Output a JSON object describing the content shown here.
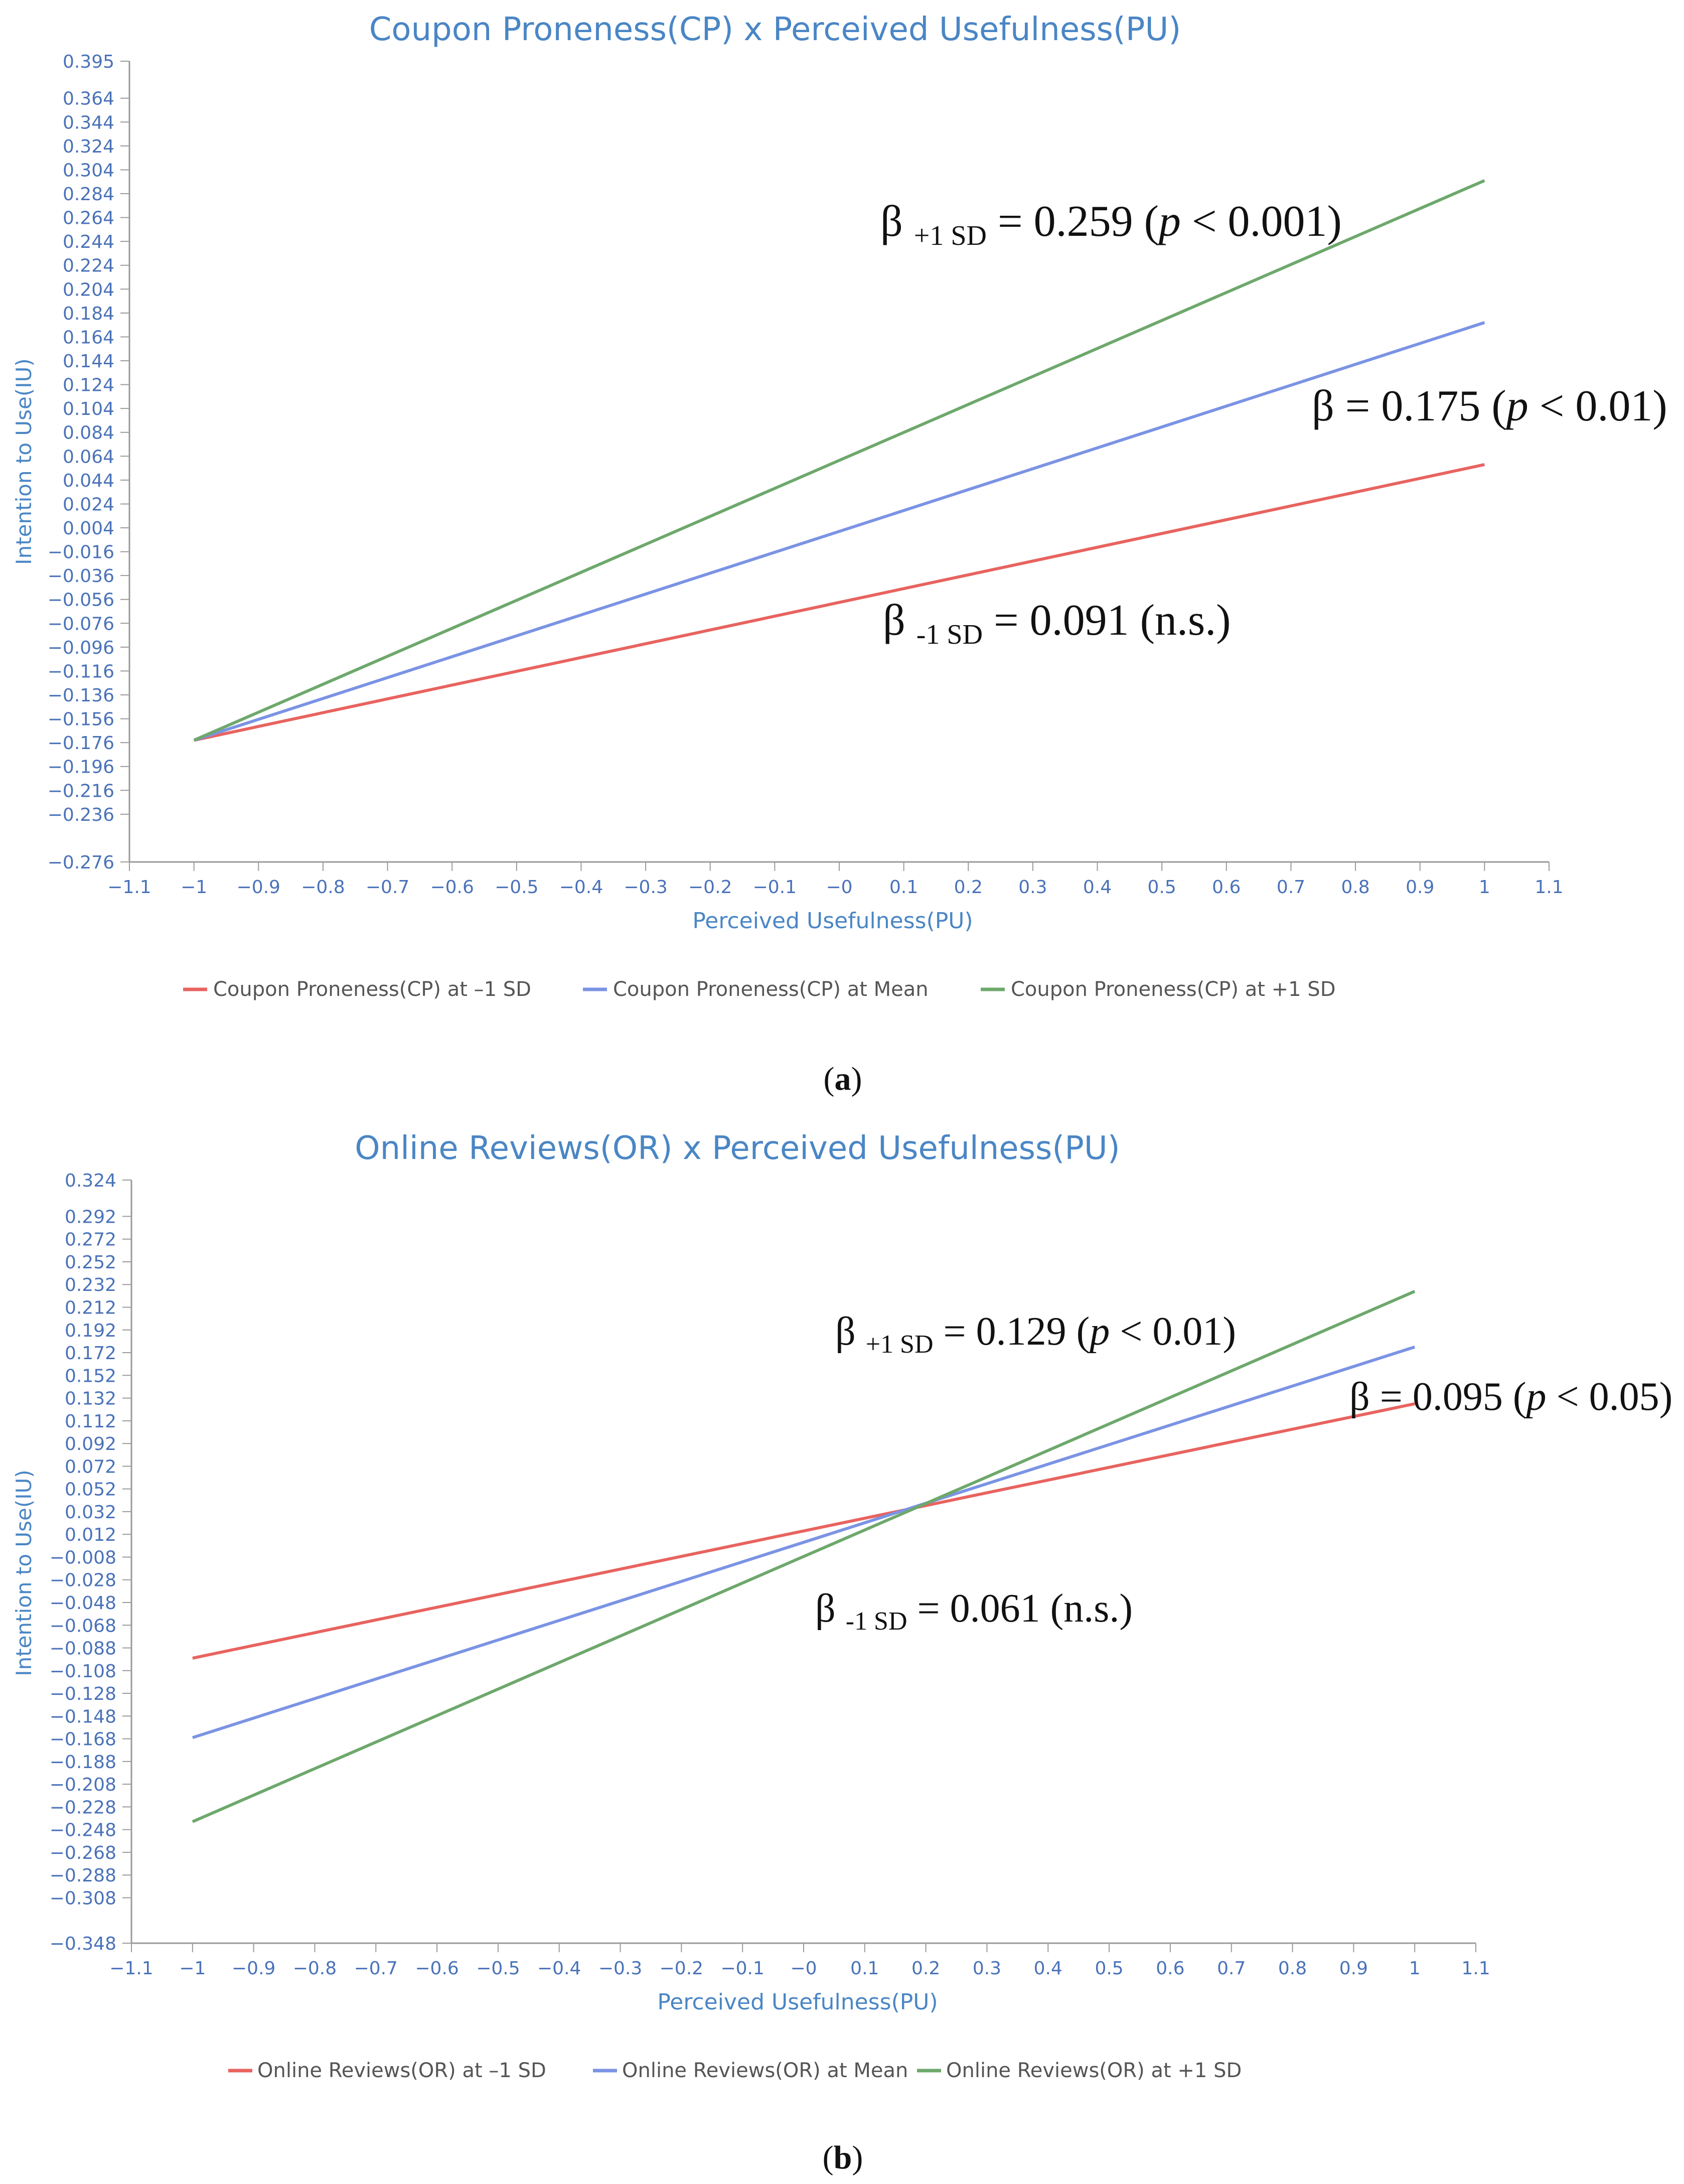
{
  "figure": {
    "caption_a": "a",
    "caption_b": "b"
  },
  "chart_data": [
    {
      "type": "line",
      "title": "Coupon Proneness(CP) x Perceived Usefulness(PU)",
      "xlabel": "Perceived Usefulness(PU)",
      "ylabel": "Intention to Use(IU)",
      "xlim": [
        -1.1,
        1.1
      ],
      "ylim": [
        -0.276,
        0.395
      ],
      "x_ticks": [
        "-1.1",
        "-1",
        "-0.9",
        "-0.8",
        "-0.7",
        "-0.6",
        "-0.5",
        "-0.4",
        "-0.3",
        "-0.2",
        "-0.1",
        "-0",
        "0.1",
        "0.2",
        "0.3",
        "0.4",
        "0.5",
        "0.6",
        "0.7",
        "0.8",
        "0.9",
        "1",
        "1.1"
      ],
      "y_ticks": [
        "0.395",
        "0.364",
        "0.344",
        "0.324",
        "0.304",
        "0.284",
        "0.264",
        "0.244",
        "0.224",
        "0.204",
        "0.184",
        "0.164",
        "0.144",
        "0.124",
        "0.104",
        "0.084",
        "0.064",
        "0.044",
        "0.024",
        "0.004",
        "-0.016",
        "-0.036",
        "-0.056",
        "-0.076",
        "-0.096",
        "-0.116",
        "-0.136",
        "-0.156",
        "-0.176",
        "-0.196",
        "-0.216",
        "-0.236",
        "-0.276"
      ],
      "legend_position": "bottom",
      "grid": false,
      "series": [
        {
          "name": "Coupon Proneness(CP) at –1 SD",
          "color": "#e8635f",
          "x": [
            -1,
            1
          ],
          "y": [
            -0.174,
            0.057
          ]
        },
        {
          "name": "Coupon Proneness(CP) at Mean",
          "color": "#7b93e4",
          "x": [
            -1,
            1
          ],
          "y": [
            -0.174,
            0.176
          ]
        },
        {
          "name": "Coupon Proneness(CP) at +1 SD",
          "color": "#6ea86c",
          "x": [
            -1,
            1
          ],
          "y": [
            -0.174,
            0.295
          ]
        }
      ],
      "annotations": [
        {
          "pre": "β ",
          "sub": "+1 SD",
          "post_a": " = 0.259 (",
          "ital": "p",
          "post_b": " < 0.001)"
        },
        {
          "pre": "β",
          "sub": "",
          "post_a": " = 0.175 (",
          "ital": "p",
          "post_b": " < 0.01)"
        },
        {
          "pre": "β ",
          "sub": "-1 SD",
          "post_a": " = 0.091 (n.s.)",
          "ital": "",
          "post_b": ""
        }
      ]
    },
    {
      "type": "line",
      "title": "Online Reviews(OR) x Perceived Usefulness(PU)",
      "xlabel": "Perceived Usefulness(PU)",
      "ylabel": "Intention to Use(IU)",
      "xlim": [
        -1.1,
        1.1
      ],
      "ylim": [
        -0.348,
        0.324
      ],
      "x_ticks": [
        "-1.1",
        "-1",
        "-0.9",
        "-0.8",
        "-0.7",
        "-0.6",
        "-0.5",
        "-0.4",
        "-0.3",
        "-0.2",
        "-0.1",
        "-0",
        "0.1",
        "0.2",
        "0.3",
        "0.4",
        "0.5",
        "0.6",
        "0.7",
        "0.8",
        "0.9",
        "1",
        "1.1"
      ],
      "y_ticks": [
        "0.324",
        "0.292",
        "0.272",
        "0.252",
        "0.232",
        "0.212",
        "0.192",
        "0.172",
        "0.152",
        "0.132",
        "0.112",
        "0.092",
        "0.072",
        "0.052",
        "0.032",
        "0.012",
        "-0.008",
        "-0.028",
        "-0.048",
        "-0.068",
        "-0.088",
        "-0.108",
        "-0.128",
        "-0.148",
        "-0.168",
        "-0.188",
        "-0.208",
        "-0.228",
        "-0.248",
        "-0.268",
        "-0.288",
        "-0.308",
        "-0.348"
      ],
      "legend_position": "bottom",
      "grid": false,
      "series": [
        {
          "name": "Online Reviews(OR) at –1 SD",
          "color": "#e8635f",
          "x": [
            -1,
            1
          ],
          "y": [
            -0.097,
            0.127
          ]
        },
        {
          "name": "Online Reviews(OR) at Mean",
          "color": "#7b93e4",
          "x": [
            -1,
            1
          ],
          "y": [
            -0.167,
            0.177
          ]
        },
        {
          "name": "Online Reviews(OR) at +1 SD",
          "color": "#6ea86c",
          "x": [
            -1,
            1
          ],
          "y": [
            -0.241,
            0.226
          ]
        }
      ],
      "annotations": [
        {
          "pre": "β ",
          "sub": "+1 SD",
          "post_a": " = 0.129 (",
          "ital": "p",
          "post_b": " < 0.01)"
        },
        {
          "pre": "β",
          "sub": "",
          "post_a": " = 0.095 (",
          "ital": "p",
          "post_b": " < 0.05)"
        },
        {
          "pre": "β ",
          "sub": "-1 SD",
          "post_a": " = 0.061 (n.s.)",
          "ital": "",
          "post_b": ""
        }
      ]
    }
  ]
}
